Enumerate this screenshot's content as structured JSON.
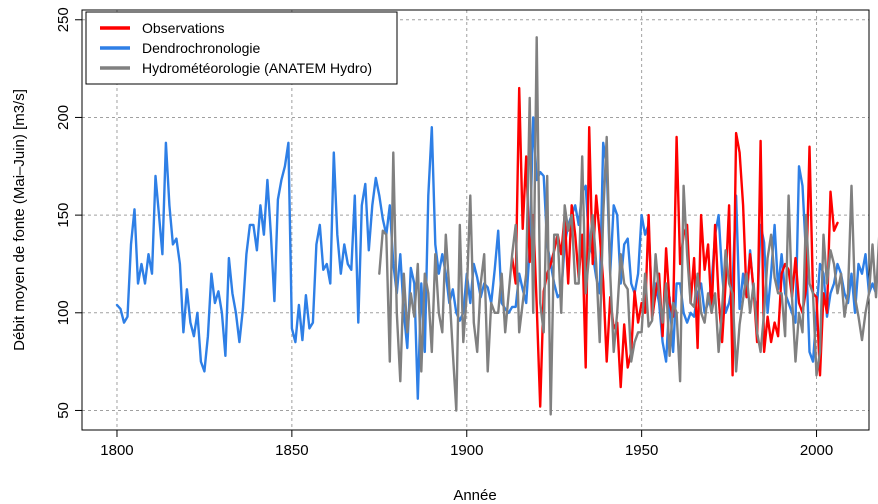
{
  "chart_data": {
    "type": "line",
    "xlabel": "Année",
    "ylabel": "Débit moyen de fonte (Mai–Juin) [m3/s]",
    "xlim": [
      1790,
      2015
    ],
    "ylim": [
      40,
      255
    ],
    "xticks": [
      1800,
      1850,
      1900,
      1950,
      2000
    ],
    "yticks": [
      50,
      100,
      150,
      200,
      250
    ],
    "grid": true,
    "legend_position": "top-left",
    "series": [
      {
        "name": "Observations",
        "color": "#ff0000",
        "x_start": 1913,
        "values": [
          128,
          115,
          215,
          143,
          180,
          126,
          150,
          104,
          52,
          111,
          120,
          125,
          132,
          140,
          130,
          150,
          115,
          155,
          140,
          118,
          140,
          72,
          195,
          125,
          160,
          140,
          116,
          75,
          108,
          92,
          95,
          62,
          94,
          72,
          80,
          111,
          95,
          105,
          100,
          150,
          97,
          110,
          120,
          88,
          133,
          105,
          98,
          190,
          125,
          140,
          145,
          105,
          128,
          82,
          150,
          122,
          135,
          100,
          145,
          108,
          85,
          115,
          155,
          68,
          192,
          182,
          155,
          108,
          130,
          112,
          85,
          188,
          80,
          98,
          85,
          95,
          88,
          120,
          125,
          122,
          108,
          128,
          105,
          100,
          112,
          185,
          110,
          108,
          68,
          110,
          100,
          162,
          142,
          146
        ]
      },
      {
        "name": "Dendrochronologie",
        "color": "#2e7fe6",
        "x_start": 1800,
        "values": [
          104,
          102,
          95,
          98,
          135,
          153,
          115,
          125,
          115,
          130,
          120,
          170,
          150,
          130,
          187,
          155,
          135,
          138,
          125,
          90,
          112,
          95,
          88,
          100,
          75,
          70,
          88,
          120,
          105,
          111,
          100,
          78,
          128,
          110,
          100,
          85,
          102,
          130,
          145,
          145,
          132,
          155,
          140,
          168,
          140,
          106,
          158,
          168,
          175,
          187,
          92,
          85,
          104,
          86,
          109,
          92,
          95,
          135,
          145,
          122,
          125,
          115,
          182,
          140,
          120,
          135,
          125,
          122,
          160,
          95,
          155,
          166,
          132,
          155,
          169,
          160,
          148,
          140,
          155,
          125,
          110,
          130,
          100,
          82,
          123,
          115,
          56,
          115,
          80,
          160,
          195,
          135,
          120,
          130,
          120,
          105,
          112,
          100,
          96,
          100,
          120,
          105,
          125,
          118,
          108,
          115,
          113,
          105,
          122,
          142,
          105,
          102,
          100,
          103,
          103,
          120,
          112,
          105,
          133,
          200,
          168,
          172,
          170,
          135,
          125,
          115,
          108,
          110,
          135,
          145,
          150,
          155,
          145,
          162,
          165,
          135,
          130,
          118,
          110,
          187,
          175,
          120,
          155,
          150,
          115,
          135,
          138,
          115,
          110,
          120,
          150,
          140,
          145,
          103,
          115,
          105,
          85,
          75,
          108,
          80,
          115,
          115,
          100,
          95,
          100,
          98,
          110,
          115,
          100,
          105,
          115,
          140,
          150,
          120,
          100,
          105,
          115,
          160,
          102,
          120,
          108,
          132,
          110,
          100,
          145,
          136,
          100,
          120,
          145,
          112,
          130,
          110,
          105,
          100,
          95,
          175,
          165,
          130,
          80,
          75,
          100,
          125,
          120,
          98,
          110,
          115,
          125,
          120,
          110,
          105,
          120,
          100,
          125,
          120,
          130,
          110,
          115,
          110
        ]
      },
      {
        "name": "Hydrométéorologie (ANATEM Hydro)",
        "color": "#808080",
        "x_start": 1875,
        "values": [
          120,
          142,
          140,
          75,
          182,
          100,
          65,
          120,
          90,
          110,
          98,
          125,
          70,
          120,
          110,
          80,
          130,
          100,
          90,
          140,
          112,
          80,
          50,
          145,
          85,
          110,
          160,
          95,
          80,
          115,
          130,
          70,
          105,
          100,
          100,
          120,
          90,
          110,
          130,
          145,
          90,
          105,
          120,
          210,
          100,
          241,
          105,
          90,
          170,
          48,
          140,
          140,
          100,
          155,
          142,
          150,
          115,
          115,
          180,
          110,
          130,
          150,
          125,
          85,
          150,
          190,
          120,
          80,
          100,
          130,
          115,
          112,
          75,
          85,
          90,
          90,
          120,
          93,
          96,
          130,
          110,
          95,
          115,
          78,
          105,
          100,
          65,
          165,
          130,
          105,
          103,
          120,
          100,
          95,
          110,
          100,
          110,
          80,
          102,
          132,
          115,
          110,
          70,
          94,
          107,
          120,
          100,
          115,
          90,
          80,
          100,
          128,
          140,
          118,
          110,
          110,
          88,
          160,
          108,
          75,
          100,
          90,
          150,
          115,
          110,
          68,
          80,
          140,
          115,
          132,
          125,
          110,
          120,
          98,
          110,
          165,
          108,
          98,
          86,
          100,
          110,
          135,
          108,
          142
        ]
      }
    ]
  }
}
